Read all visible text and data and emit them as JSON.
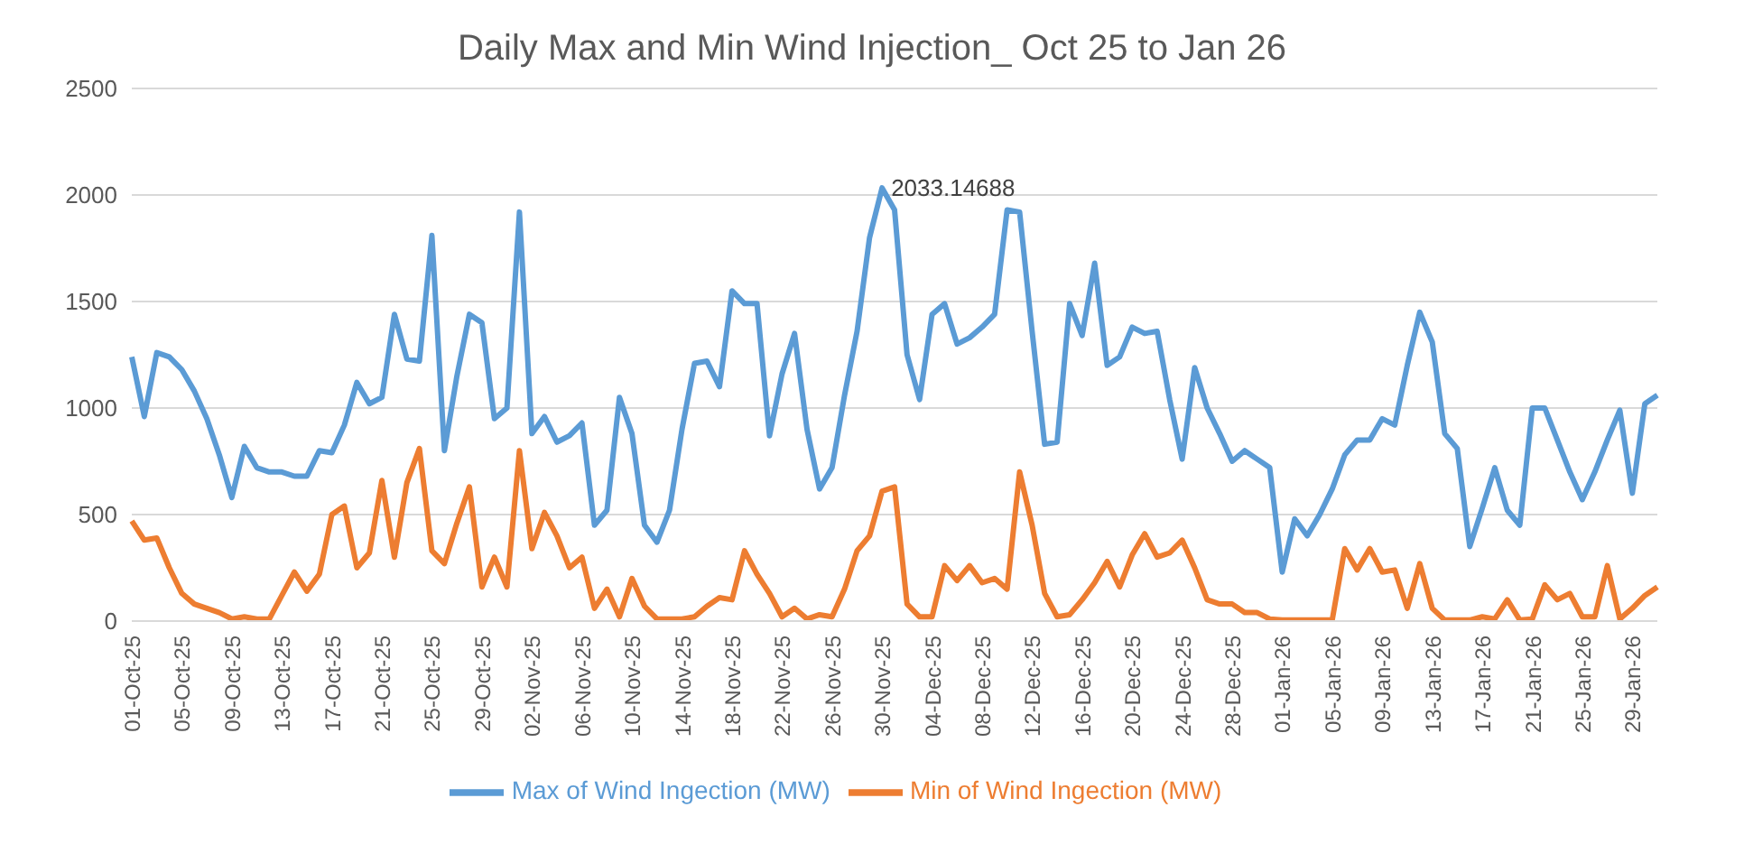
{
  "chart_data": {
    "type": "line",
    "title": "Daily Max and Min Wind Injection_ Oct 25 to Jan 26",
    "categories": [
      "01-Oct-25",
      null,
      null,
      null,
      "05-Oct-25",
      null,
      null,
      null,
      "09-Oct-25",
      null,
      null,
      null,
      "13-Oct-25",
      null,
      null,
      null,
      "17-Oct-25",
      null,
      null,
      null,
      "21-Oct-25",
      null,
      null,
      null,
      "25-Oct-25",
      null,
      null,
      null,
      "29-Oct-25",
      null,
      null,
      null,
      "02-Nov-25",
      null,
      null,
      null,
      "06-Nov-25",
      null,
      null,
      null,
      "10-Nov-25",
      null,
      null,
      null,
      "14-Nov-25",
      null,
      null,
      null,
      "18-Nov-25",
      null,
      null,
      null,
      "22-Nov-25",
      null,
      null,
      null,
      "26-Nov-25",
      null,
      null,
      null,
      "30-Nov-25",
      null,
      null,
      null,
      "04-Dec-25",
      null,
      null,
      null,
      "08-Dec-25",
      null,
      null,
      null,
      "12-Dec-25",
      null,
      null,
      null,
      "16-Dec-25",
      null,
      null,
      null,
      "20-Dec-25",
      null,
      null,
      null,
      "24-Dec-25",
      null,
      null,
      null,
      "28-Dec-25",
      null,
      null,
      null,
      "01-Jan-26",
      null,
      null,
      null,
      "05-Jan-26",
      null,
      null,
      null,
      "09-Jan-26",
      null,
      null,
      null,
      "13-Jan-26",
      null,
      null,
      null,
      "17-Jan-26",
      null,
      null,
      null,
      "21-Jan-26",
      null,
      null,
      null,
      "25-Jan-26",
      null,
      null,
      null,
      "29-Jan-26",
      null,
      null
    ],
    "series": [
      {
        "name": "Max of Wind Ingection (MW)",
        "color": "#5b9bd5",
        "values": [
          1240,
          960,
          1260,
          1240,
          1180,
          1080,
          950,
          780,
          580,
          820,
          720,
          700,
          700,
          680,
          680,
          800,
          790,
          920,
          1120,
          1020,
          1050,
          1440,
          1230,
          1220,
          1810,
          800,
          1150,
          1440,
          1400,
          950,
          1000,
          1920,
          880,
          960,
          840,
          870,
          930,
          450,
          520,
          1050,
          880,
          450,
          370,
          520,
          900,
          1210,
          1220,
          1100,
          1550,
          1490,
          1490,
          870,
          1160,
          1350,
          900,
          620,
          720,
          1060,
          1360,
          1800,
          2033.14688,
          1930,
          1250,
          1040,
          1440,
          1490,
          1300,
          1330,
          1380,
          1440,
          1930,
          1920,
          1360,
          830,
          840,
          1490,
          1340,
          1680,
          1200,
          1240,
          1380,
          1350,
          1360,
          1040,
          760,
          1190,
          1000,
          880,
          750,
          800,
          760,
          720,
          230,
          480,
          400,
          500,
          620,
          780,
          850,
          850,
          950,
          920,
          1200,
          1450,
          1310,
          880,
          810,
          350,
          530,
          720,
          520,
          450,
          1000,
          1000,
          850,
          700,
          570,
          700,
          850,
          990,
          600,
          1020,
          1060
        ]
      },
      {
        "name": "Min of Wind Ingection (MW)",
        "color": "#ed7d31",
        "values": [
          470,
          380,
          390,
          250,
          130,
          80,
          60,
          40,
          10,
          20,
          10,
          10,
          120,
          230,
          140,
          220,
          500,
          540,
          250,
          320,
          660,
          300,
          650,
          810,
          330,
          270,
          460,
          630,
          160,
          300,
          160,
          800,
          340,
          510,
          400,
          250,
          300,
          60,
          150,
          20,
          200,
          70,
          10,
          10,
          10,
          20,
          70,
          110,
          100,
          330,
          220,
          130,
          20,
          60,
          10,
          30,
          20,
          150,
          330,
          400,
          610,
          630,
          80,
          20,
          20,
          260,
          190,
          260,
          180,
          200,
          150,
          700,
          450,
          130,
          20,
          30,
          100,
          180,
          280,
          160,
          310,
          410,
          300,
          320,
          380,
          250,
          100,
          80,
          80,
          40,
          40,
          10,
          5,
          5,
          5,
          5,
          5,
          340,
          240,
          340,
          230,
          240,
          60,
          270,
          60,
          5,
          5,
          5,
          20,
          10,
          100,
          5,
          10,
          170,
          100,
          130,
          20,
          20,
          260,
          10,
          60,
          120,
          160
        ]
      }
    ],
    "ylim": [
      0,
      2500
    ],
    "yticks": [
      0,
      500,
      1000,
      1500,
      2000,
      2500
    ],
    "grid": "y",
    "legend": "bottom",
    "annotations": [
      {
        "text": "2033.14688",
        "x": "30-Nov-25",
        "y": 2033.14688
      }
    ]
  }
}
